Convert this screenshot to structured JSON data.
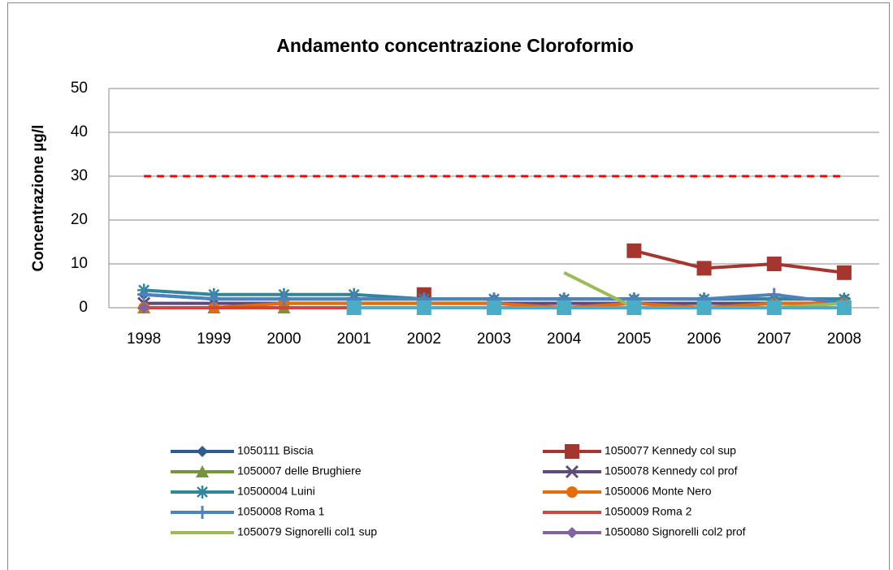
{
  "chart_data": {
    "type": "line",
    "title": "Andamento concentrazione Cloroformio",
    "y_label": "Concentrazione µg/l",
    "categories": [
      "1998",
      "1999",
      "2000",
      "2001",
      "2002",
      "2003",
      "2004",
      "2005",
      "2006",
      "2007",
      "2008"
    ],
    "ylim": [
      0,
      50
    ],
    "yticks": [
      0,
      10,
      20,
      30,
      40,
      50
    ],
    "grid": true,
    "reference_line": {
      "value": 30,
      "color": "#ff0000"
    },
    "series": [
      {
        "name": "1050111 Biscia",
        "color": "#2e5c8f",
        "marker": "diamond",
        "values": [
          3,
          2,
          2,
          2,
          2,
          2,
          2,
          2,
          2,
          2,
          2
        ]
      },
      {
        "name": "1050077 Kennedy col sup",
        "color": "#a5352f",
        "marker": "square",
        "values": [
          null,
          null,
          null,
          null,
          3,
          null,
          null,
          13,
          9,
          10,
          8
        ]
      },
      {
        "name": "1050007 delle Brughiere",
        "color": "#77933c",
        "marker": "triangle",
        "values": [
          0,
          0,
          0,
          null,
          null,
          null,
          null,
          null,
          null,
          null,
          null
        ]
      },
      {
        "name": "1050078 Kennedy col prof",
        "color": "#604a7b",
        "marker": "x",
        "values": [
          1,
          1,
          1,
          1,
          1,
          1,
          1,
          1,
          1,
          1,
          1
        ]
      },
      {
        "name": "10500004 Luini",
        "color": "#31859c",
        "marker": "asterisk",
        "values": [
          4,
          3,
          3,
          3,
          2,
          2,
          2,
          2,
          2,
          2,
          2
        ]
      },
      {
        "name": "1050006 Monte Nero",
        "color": "#e46c0a",
        "marker": "circle",
        "values": [
          0,
          0,
          1,
          1,
          1,
          1,
          0,
          1,
          0,
          1,
          1
        ]
      },
      {
        "name": "1050008 Roma 1",
        "color": "#4f81bd",
        "marker": "plus",
        "values": [
          3,
          2,
          2,
          2,
          2,
          2,
          2,
          2,
          2,
          3,
          1
        ]
      },
      {
        "name": "1050009 Roma 2",
        "color": "#d0453f",
        "marker": "none",
        "values": [
          0,
          0,
          0,
          0,
          0,
          0,
          0,
          0,
          0,
          0,
          0
        ]
      },
      {
        "name": "1050079 Signorelli col1 sup",
        "color": "#9bbb59",
        "marker": "none",
        "values": [
          null,
          null,
          null,
          null,
          null,
          null,
          8,
          0,
          0,
          0,
          1
        ]
      },
      {
        "name": "1050080 Signorelli col2 prof",
        "color": "#8064a2",
        "marker": "diamond",
        "values": [
          0,
          null,
          null,
          null,
          null,
          null,
          null,
          null,
          null,
          null,
          null
        ]
      },
      {
        "color": "#4bacc6",
        "marker": "square",
        "values": [
          null,
          null,
          null,
          0,
          0,
          0,
          0,
          0,
          0,
          0,
          0
        ]
      }
    ]
  }
}
